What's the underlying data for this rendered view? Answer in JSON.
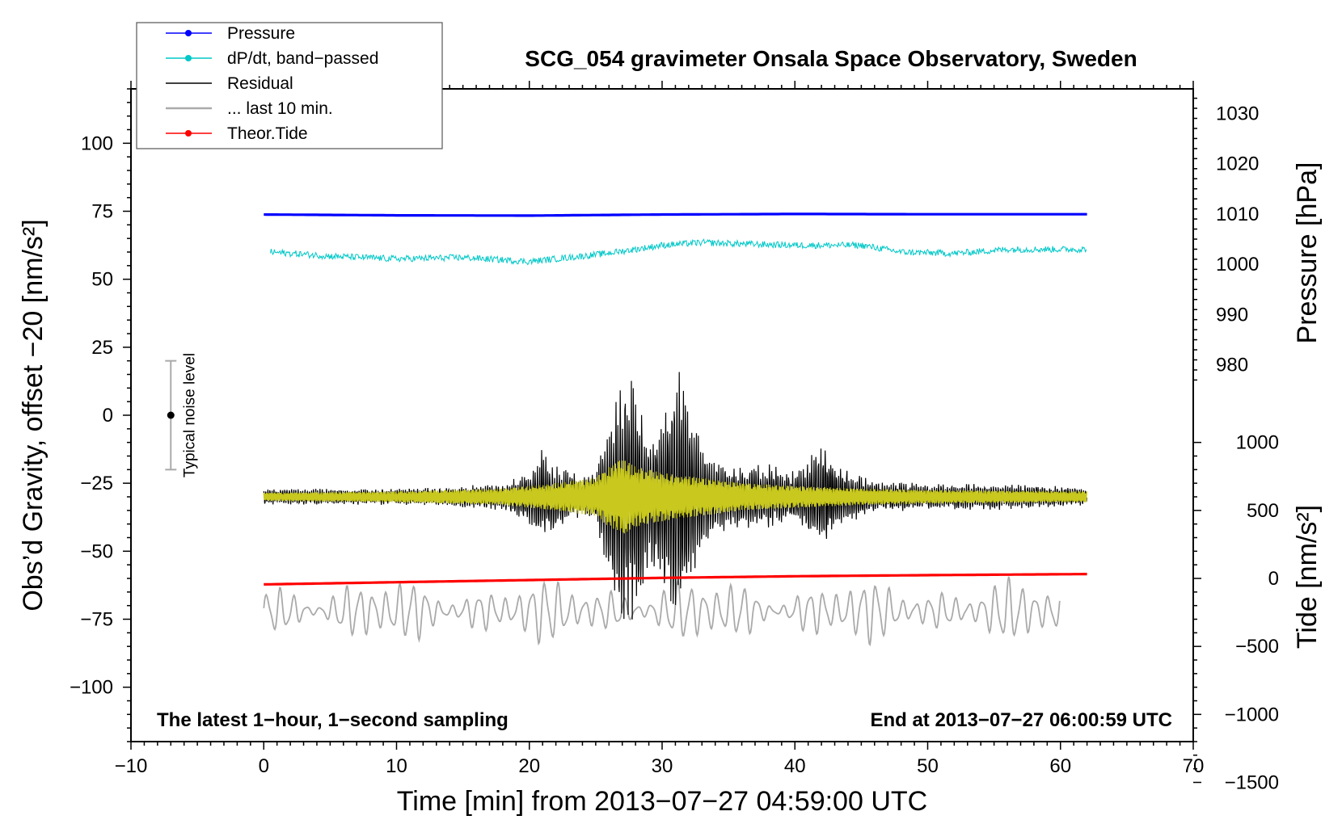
{
  "chart_data": {
    "type": "line",
    "title": "SCG_054 gravimeter Onsala Space Observatory, Sweden",
    "xlabel": "Time [min] from 2013−07−27 04:59:00 UTC",
    "ylabel_left": "Obs’d Gravity, offset −20 [nm/s²]",
    "ylabel_right_pressure": "Pressure [hPa]",
    "ylabel_right_tide": "Tide [nm/s²]",
    "xlim": [
      -10,
      70
    ],
    "ylim_left": [
      -120,
      120
    ],
    "x_ticks": [
      -10,
      0,
      10,
      20,
      30,
      40,
      50,
      60,
      70
    ],
    "x_tick_labels": [
      "−10",
      "0",
      "10",
      "20",
      "30",
      "40",
      "50",
      "60",
      "70"
    ],
    "y_left_ticks": [
      100,
      75,
      50,
      25,
      0,
      -25,
      -50,
      -75,
      -100
    ],
    "y_left_tick_labels": [
      "100",
      "75",
      "50",
      "25",
      "0",
      "−25",
      "−50",
      "−75",
      "−100"
    ],
    "pressure_axis": {
      "ticks": [
        1030,
        1020,
        1010,
        1000,
        990,
        980
      ],
      "tick_labels": [
        "1030",
        "1020",
        "1010",
        "1000",
        "990",
        "980"
      ],
      "map_left_at_1010": 74,
      "left_units_per_hPa": 1.85
    },
    "tide_axis": {
      "ticks": [
        1000,
        500,
        0,
        -500,
        -1000,
        -1500
      ],
      "tick_labels": [
        "1000",
        "500",
        "0",
        "−500",
        "−1000",
        "−1500"
      ],
      "map_left_at_0": -60,
      "left_units_per_nms2": 0.05
    },
    "legend": {
      "position": "top-left",
      "entries": [
        {
          "label": "Pressure",
          "color": "#0000ff",
          "marker": true
        },
        {
          "label": "dP/dt, band−passed",
          "color": "#00c8c8",
          "marker": true
        },
        {
          "label": "Residual",
          "color": "#000000",
          "marker": false
        },
        {
          "label": "... last 10 min.",
          "color": "#aaaaaa",
          "marker": false
        },
        {
          "label": "Theor.Tide",
          "color": "#ff0000",
          "marker": true
        }
      ]
    },
    "annotations": {
      "left_bottom": "The latest 1−hour, 1−second sampling",
      "right_bottom": "End at 2013−07−27 06:00:59 UTC",
      "noise_label": "Typical noise level"
    },
    "noise_bar": {
      "x": -7,
      "center": 0,
      "low": -20,
      "high": 20
    },
    "series": [
      {
        "name": "Pressure",
        "color": "#0000ff",
        "plot_units": "left_axis",
        "x": [
          0,
          10,
          20,
          30,
          40,
          50,
          62
        ],
        "y": [
          73.8,
          73.5,
          73.4,
          73.8,
          74.0,
          73.9,
          73.9
        ]
      },
      {
        "name": "dP/dt, band-passed",
        "color": "#00c8c8",
        "plot_units": "left_axis",
        "x": [
          0.5,
          5,
          10,
          15,
          20,
          22,
          25,
          28,
          30,
          33,
          36,
          40,
          45,
          48,
          52,
          56,
          60,
          62
        ],
        "y": [
          60,
          58.5,
          57.5,
          58,
          56.5,
          57.5,
          59,
          61,
          62.5,
          63.5,
          63,
          62.5,
          62.5,
          60,
          59.5,
          61,
          61,
          61
        ]
      },
      {
        "name": "Theor.Tide",
        "color": "#ff0000",
        "plot_units": "left_axis",
        "x": [
          0,
          10,
          20,
          30,
          40,
          50,
          62
        ],
        "y": [
          -62.2,
          -61.4,
          -60.6,
          -59.8,
          -59.2,
          -58.8,
          -58.4
        ]
      },
      {
        "name": "Residual",
        "color": "#000000",
        "plot_units": "left_axis",
        "baseline": -30,
        "envelope_x": [
          0,
          10,
          18,
          20,
          21,
          22,
          24,
          25,
          26,
          27,
          28,
          28.5,
          29,
          30,
          31,
          32,
          33,
          34,
          36,
          38,
          40,
          41,
          42,
          44,
          46,
          50,
          55,
          60,
          62
        ],
        "envelope_amp": [
          3,
          3,
          5,
          10,
          18,
          12,
          8,
          10,
          30,
          48,
          45,
          38,
          25,
          32,
          52,
          35,
          22,
          14,
          12,
          12,
          10,
          14,
          20,
          10,
          6,
          5,
          5,
          4,
          3
        ]
      },
      {
        "name": "Residual (filtered)",
        "color": "#c8c81e",
        "plot_units": "left_axis",
        "baseline": -30,
        "envelope_x": [
          0,
          10,
          18,
          22,
          25,
          26,
          27,
          28,
          29,
          30,
          31,
          33,
          36,
          40,
          45,
          50,
          62
        ],
        "envelope_amp": [
          1.5,
          2,
          3,
          5,
          7,
          11,
          14,
          11,
          10,
          9,
          8,
          7,
          5,
          4,
          3,
          2.5,
          2
        ]
      },
      {
        "name": "... last 10 min.",
        "color": "#aaaaaa",
        "plot_units": "left_axis",
        "baseline": -72,
        "x_range": [
          0,
          60
        ],
        "amplitude": 10
      }
    ]
  }
}
